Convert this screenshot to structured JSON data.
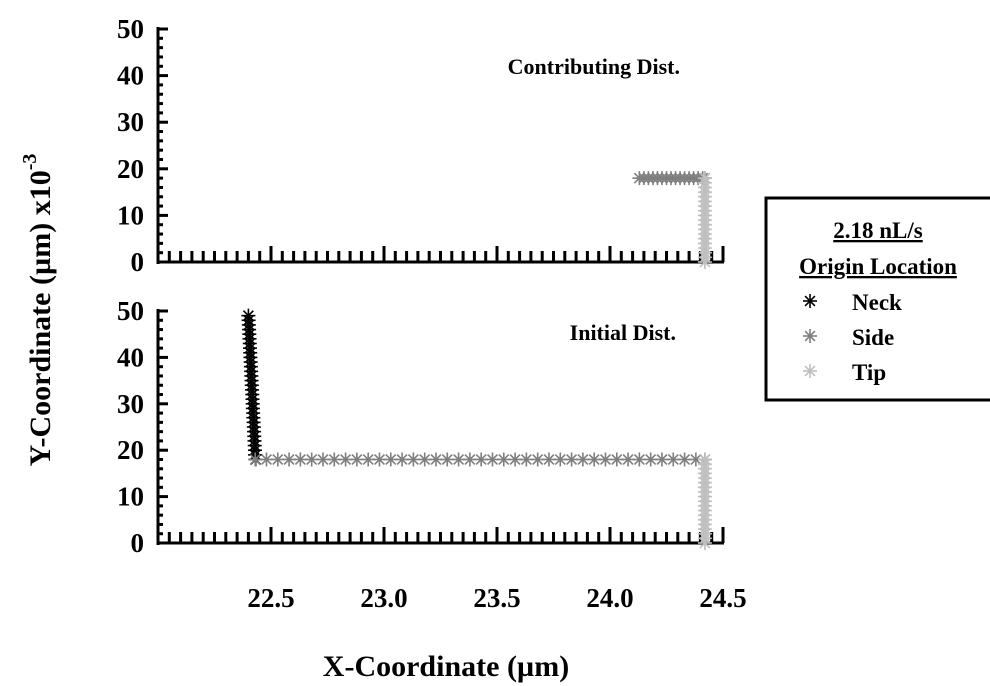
{
  "chart_data": {
    "type": "scatter",
    "xlabel": "X-Coordinate (µm)",
    "ylabel": "Y-Coordinate (µm) x10",
    "ylabel_exponent": "-3",
    "xlim": [
      22.0,
      24.5
    ],
    "xticks": [
      "22.5",
      "23.0",
      "23.5",
      "24.0",
      "24.5"
    ],
    "legend": {
      "title_line1": "2.18 nL/s",
      "title_line2": "Origin Location",
      "placement": "right",
      "entries": [
        {
          "name": "Neck",
          "color": "#000000"
        },
        {
          "name": "Side",
          "color": "#7f7f7f"
        },
        {
          "name": "Tip",
          "color": "#bfbfbf"
        }
      ]
    },
    "panels": [
      {
        "label": "Contributing Dist.",
        "ylim": [
          0,
          50
        ],
        "yticks": [
          "0",
          "10",
          "20",
          "30",
          "40",
          "50"
        ],
        "series": [
          {
            "name": "Neck",
            "color": "#000000",
            "x": [],
            "y": []
          },
          {
            "name": "Side",
            "color": "#7f7f7f",
            "x": [
              24.13,
              24.15,
              24.17,
              24.19,
              24.21,
              24.23,
              24.25,
              24.27,
              24.29,
              24.31,
              24.33,
              24.35,
              24.37,
              24.39,
              24.41,
              24.42
            ],
            "y": [
              18,
              18,
              18,
              18,
              18,
              18,
              18,
              18,
              18,
              18,
              18,
              18,
              18,
              18,
              18,
              18
            ]
          },
          {
            "name": "Tip",
            "color": "#bfbfbf",
            "x": [
              24.42,
              24.42,
              24.42,
              24.42,
              24.42,
              24.42,
              24.42,
              24.42,
              24.42,
              24.42,
              24.42,
              24.42,
              24.42,
              24.42,
              24.42,
              24.42,
              24.42,
              24.42,
              24.42
            ],
            "y": [
              18,
              17,
              16,
              15,
              14,
              13,
              12,
              11,
              10,
              9,
              8,
              7,
              6,
              5,
              4,
              3,
              2,
              1,
              0
            ]
          }
        ]
      },
      {
        "label": "Initial Dist.",
        "ylim": [
          0,
          50
        ],
        "yticks": [
          "0",
          "10",
          "20",
          "30",
          "40",
          "50"
        ],
        "series": [
          {
            "name": "Neck",
            "color": "#000000",
            "x": [
              22.4,
              22.401,
              22.402,
              22.403,
              22.404,
              22.405,
              22.406,
              22.407,
              22.408,
              22.409,
              22.41,
              22.411,
              22.412,
              22.413,
              22.414,
              22.415,
              22.416,
              22.417,
              22.418,
              22.419,
              22.42,
              22.421,
              22.422,
              22.423,
              22.424,
              22.425,
              22.426,
              22.427,
              22.428,
              22.429,
              22.43,
              22.431,
              22.432
            ],
            "y": [
              49,
              48,
              47,
              46,
              45,
              44,
              43,
              42,
              41,
              40,
              39,
              38,
              37,
              36,
              35,
              34,
              33,
              32,
              31,
              30,
              29,
              28,
              27,
              26,
              25,
              24,
              23,
              22,
              21,
              20,
              19,
              19,
              18
            ]
          },
          {
            "name": "Side",
            "color": "#7f7f7f",
            "x": [
              22.43,
              22.48,
              22.53,
              22.58,
              22.63,
              22.68,
              22.73,
              22.78,
              22.83,
              22.88,
              22.93,
              22.98,
              23.03,
              23.08,
              23.13,
              23.18,
              23.23,
              23.28,
              23.33,
              23.38,
              23.43,
              23.48,
              23.53,
              23.58,
              23.63,
              23.68,
              23.73,
              23.78,
              23.83,
              23.88,
              23.93,
              23.98,
              24.03,
              24.08,
              24.13,
              24.18,
              24.23,
              24.28,
              24.33,
              24.38,
              24.42
            ],
            "y": [
              18,
              18,
              18,
              18,
              18,
              18,
              18,
              18,
              18,
              18,
              18,
              18,
              18,
              18,
              18,
              18,
              18,
              18,
              18,
              18,
              18,
              18,
              18,
              18,
              18,
              18,
              18,
              18,
              18,
              18,
              18,
              18,
              18,
              18,
              18,
              18,
              18,
              18,
              18,
              18,
              18
            ]
          },
          {
            "name": "Tip",
            "color": "#bfbfbf",
            "x": [
              24.42,
              24.42,
              24.42,
              24.42,
              24.42,
              24.42,
              24.42,
              24.42,
              24.42,
              24.42,
              24.42,
              24.42,
              24.42,
              24.42,
              24.42,
              24.42,
              24.42,
              24.42,
              24.42
            ],
            "y": [
              18,
              17,
              16,
              15,
              14,
              13,
              12,
              11,
              10,
              9,
              8,
              7,
              6,
              5,
              4,
              3,
              2,
              1,
              0
            ]
          }
        ]
      }
    ]
  }
}
